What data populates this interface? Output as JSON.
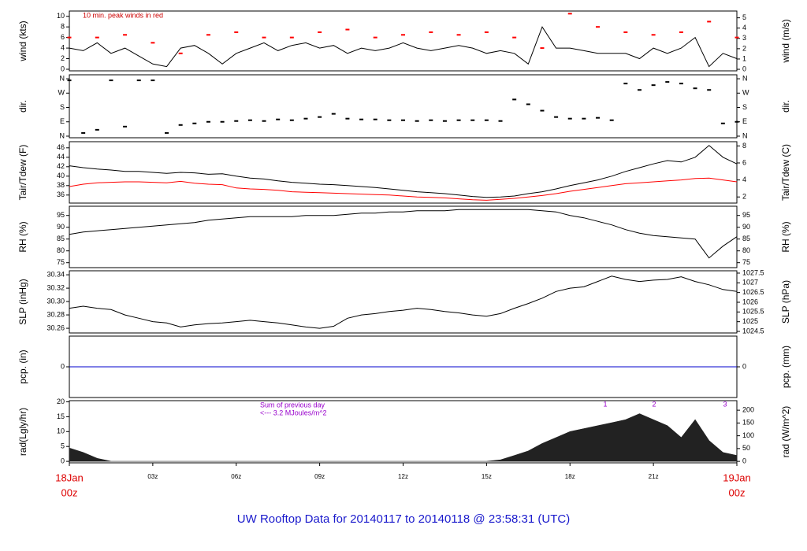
{
  "time_axis": {
    "x": [
      0,
      0.5,
      1,
      1.5,
      2,
      2.5,
      3,
      3.5,
      4,
      4.5,
      5,
      5.5,
      6,
      6.5,
      7,
      7.5,
      8,
      8.5,
      9,
      9.5,
      10,
      10.5,
      11,
      11.5,
      12,
      12.5,
      13,
      13.5,
      14,
      14.5,
      15,
      15.5,
      16,
      16.5,
      17,
      17.5,
      18,
      18.5,
      19,
      19.5,
      20,
      20.5,
      21,
      21.5,
      22,
      22.5,
      23,
      23.5,
      24
    ],
    "xlim": [
      0,
      24
    ],
    "xticks": [
      {
        "value": 0,
        "label": "00z"
      },
      {
        "value": 3,
        "label": "03z"
      },
      {
        "value": 6,
        "label": "06z"
      },
      {
        "value": 9,
        "label": "09z"
      },
      {
        "value": 12,
        "label": "12z"
      },
      {
        "value": 15,
        "label": "15z"
      },
      {
        "value": 18,
        "label": "18z"
      },
      {
        "value": 21,
        "label": "21z"
      },
      {
        "value": 24,
        "label": "00z"
      }
    ],
    "date_labels": [
      "18Jan",
      "19Jan"
    ]
  },
  "title": "UW Rooftop Data for 20140117  to  20140118 @ 23:58:31  (UTC)",
  "chart_data": [
    {
      "type": "line",
      "ylabel": "wind (kts)",
      "y2label": "wind (m/s)",
      "ylim": [
        -0.3,
        11
      ],
      "yticks": [
        0,
        2,
        4,
        6,
        8,
        10
      ],
      "y2lim": [
        -0.15,
        5.66
      ],
      "y2ticks": [
        0,
        1,
        2,
        3,
        4,
        5
      ],
      "annotations": [
        "10 min. peak winds in red"
      ],
      "series": [
        {
          "name": "wind",
          "color": "#000000",
          "values": [
            4,
            3.5,
            5,
            3,
            4,
            2.5,
            1,
            0.5,
            4,
            4.5,
            3,
            1,
            3,
            4,
            5,
            3.5,
            4.5,
            5,
            4,
            4.5,
            3,
            4,
            3.5,
            4,
            5,
            4,
            3.5,
            4,
            4.5,
            4,
            3,
            3.5,
            3,
            1,
            8,
            4,
            4,
            3.5,
            3,
            3,
            3,
            2,
            4,
            3,
            4,
            6,
            0.5,
            3,
            2
          ]
        },
        {
          "name": "peak",
          "type": "scatter",
          "color": "#ff0000",
          "x": [
            0,
            1,
            2,
            3,
            4,
            5,
            6,
            7,
            8,
            9,
            10,
            11,
            12,
            13,
            14,
            15,
            16,
            17,
            18,
            19,
            20,
            21,
            22,
            23,
            24
          ],
          "values": [
            6,
            6,
            6.5,
            5,
            3,
            6.5,
            7,
            6,
            6,
            7,
            7.5,
            6,
            6.5,
            7,
            6.5,
            7,
            6,
            4,
            10.5,
            8,
            7,
            6.5,
            7,
            9,
            6
          ]
        }
      ]
    },
    {
      "type": "scatter",
      "ylabel": "dir.",
      "y2label": "dir.",
      "ylim": [
        -10,
        385
      ],
      "yticks": [
        {
          "value": 0,
          "label": "N"
        },
        {
          "value": 90,
          "label": "E"
        },
        {
          "value": 180,
          "label": "S"
        },
        {
          "value": 270,
          "label": "W"
        },
        {
          "value": 360,
          "label": "N"
        }
      ],
      "y2lim": [
        -10,
        385
      ],
      "y2ticks": [
        {
          "value": 0,
          "label": "N"
        },
        {
          "value": 90,
          "label": "E"
        },
        {
          "value": 180,
          "label": "S"
        },
        {
          "value": 270,
          "label": "W"
        },
        {
          "value": 360,
          "label": "N"
        }
      ],
      "series": [
        {
          "name": "dir",
          "color": "#000000",
          "values": [
            350,
            20,
            40,
            350,
            60,
            350,
            350,
            20,
            70,
            80,
            90,
            90,
            95,
            100,
            95,
            105,
            100,
            110,
            120,
            140,
            110,
            105,
            105,
            100,
            100,
            95,
            100,
            95,
            100,
            100,
            100,
            95,
            230,
            200,
            160,
            120,
            110,
            110,
            115,
            100,
            330,
            290,
            320,
            340,
            330,
            300,
            290,
            80,
            90
          ]
        }
      ]
    },
    {
      "type": "line",
      "ylabel": "Tair/Tdew (F)",
      "y2label": "Tair/Tdew (C)",
      "ylim": [
        34.3,
        47.3
      ],
      "yticks": [
        36,
        38,
        40,
        42,
        44,
        46
      ],
      "y2lim": [
        1.28,
        8.5
      ],
      "y2ticks": [
        2,
        4,
        6,
        8
      ],
      "series": [
        {
          "name": "Tair",
          "color": "#000000",
          "values": [
            42.2,
            41.8,
            41.5,
            41.3,
            41,
            41,
            40.8,
            40.6,
            40.8,
            40.7,
            40.4,
            40.5,
            40,
            39.6,
            39.4,
            39,
            38.7,
            38.5,
            38.3,
            38.2,
            38,
            37.8,
            37.6,
            37.3,
            37,
            36.7,
            36.5,
            36.3,
            36,
            35.7,
            35.5,
            35.6,
            35.8,
            36.3,
            36.7,
            37.3,
            38,
            38.6,
            39.2,
            40,
            41,
            41.8,
            42.6,
            43.3,
            43,
            44,
            46.5,
            44,
            42.6
          ]
        },
        {
          "name": "Tdew",
          "color": "#ff0000",
          "values": [
            37.8,
            38.3,
            38.6,
            38.7,
            38.8,
            38.8,
            38.7,
            38.6,
            38.9,
            38.5,
            38.3,
            38.2,
            37.5,
            37.3,
            37.2,
            37,
            36.7,
            36.6,
            36.5,
            36.4,
            36.3,
            36.2,
            36.1,
            36,
            35.8,
            35.6,
            35.5,
            35.4,
            35.2,
            35,
            34.9,
            35.1,
            35.3,
            35.6,
            35.9,
            36.3,
            36.8,
            37.2,
            37.6,
            38,
            38.4,
            38.6,
            38.8,
            39,
            39.2,
            39.5,
            39.6,
            39.2,
            38.8
          ]
        }
      ]
    },
    {
      "type": "line",
      "ylabel": "RH (%)",
      "y2label": "RH (%)",
      "ylim": [
        72.9,
        98.9
      ],
      "yticks": [
        75,
        80,
        85,
        90,
        95
      ],
      "y2lim": [
        72.9,
        98.9
      ],
      "y2ticks": [
        75,
        80,
        85,
        90,
        95
      ],
      "series": [
        {
          "name": "RH",
          "color": "#000000",
          "values": [
            87,
            88,
            88.5,
            89,
            89.5,
            90,
            90.5,
            91,
            91.5,
            92,
            93,
            93.5,
            94,
            94.5,
            94.5,
            94.5,
            94.5,
            95,
            95,
            95,
            95.5,
            96,
            96,
            96.5,
            96.5,
            97,
            97,
            97,
            97.5,
            97.5,
            97.5,
            97.5,
            97.5,
            97.5,
            97,
            96.5,
            95,
            94,
            92.5,
            91,
            89,
            87.5,
            86.5,
            86,
            85.5,
            85,
            77,
            82,
            86
          ]
        }
      ]
    },
    {
      "type": "line",
      "ylabel": "SLP (inHg)",
      "y2label": "SLP (hPa)",
      "ylim": [
        30.253,
        30.346
      ],
      "yticks": [
        30.26,
        30.28,
        {
          "value": 30.3,
          "label": "30.30"
        },
        30.32,
        30.34
      ],
      "y2lim": [
        1024.42,
        1027.62
      ],
      "y2ticks": [
        1024.5,
        1025,
        1025.5,
        1026,
        1026.5,
        1027,
        1027.5
      ],
      "series": [
        {
          "name": "SLP",
          "color": "#000000",
          "values": [
            30.29,
            30.293,
            30.29,
            30.288,
            30.28,
            30.275,
            30.27,
            30.268,
            30.262,
            30.265,
            30.267,
            30.268,
            30.27,
            30.272,
            30.27,
            30.268,
            30.265,
            30.262,
            30.26,
            30.263,
            30.275,
            30.28,
            30.282,
            30.285,
            30.287,
            30.29,
            30.288,
            30.285,
            30.283,
            30.28,
            30.278,
            30.282,
            30.29,
            30.297,
            30.305,
            30.315,
            30.32,
            30.322,
            30.33,
            30.338,
            30.333,
            30.33,
            30.332,
            30.333,
            30.337,
            30.33,
            30.325,
            30.318,
            30.315
          ]
        }
      ]
    },
    {
      "type": "line",
      "ylabel": "pcp. (in)",
      "y2label": "pcp. (mm)",
      "ylim": [
        -1,
        1
      ],
      "yticks": [
        0
      ],
      "y2lim": [
        -25.4,
        25.4
      ],
      "y2ticks": [
        0
      ],
      "series": [
        {
          "name": "pcp",
          "color": "#0000cc",
          "x": [
            0,
            24
          ],
          "values": [
            0,
            0
          ]
        }
      ]
    },
    {
      "type": "area",
      "ylabel": "rad(Lgly/hr)",
      "y2label": "rad (W/m^2)",
      "ylim": [
        -0.5,
        20.4
      ],
      "yticks": [
        0,
        5,
        10,
        15,
        20
      ],
      "y2lim": [
        -5.8,
        237.3
      ],
      "y2ticks": [
        0,
        50,
        100,
        150,
        200
      ],
      "annotations": [
        "Sum of previous day",
        "<--- 3.2 MJoules/m^2",
        "1",
        "2",
        "3"
      ],
      "series": [
        {
          "name": "rad",
          "color": "#222222",
          "values": [
            4.5,
            3,
            1,
            0,
            0,
            0,
            0,
            0,
            0,
            0,
            0,
            0,
            0,
            0,
            0,
            0,
            0,
            0,
            0,
            0,
            0,
            0,
            0,
            0,
            0,
            0,
            0,
            0,
            0,
            0,
            0,
            0.5,
            2,
            3.5,
            6,
            8,
            10,
            11,
            12,
            13,
            14,
            16,
            14,
            12,
            8,
            14,
            7,
            3,
            2
          ]
        }
      ]
    }
  ]
}
